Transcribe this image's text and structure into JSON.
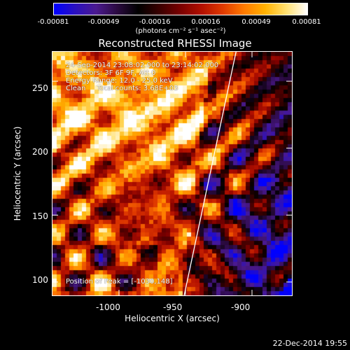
{
  "colorbar": {
    "tick_labels": [
      "-0.00081",
      "-0.00049",
      "-0.00016",
      "0.00016",
      "0.00049",
      "0.00081"
    ],
    "units": "(photons cm⁻² s⁻¹ asec⁻²)",
    "colormap": [
      "#0000ff",
      "#2a10c0",
      "#4b1a90",
      "#2b0a40",
      "#000000",
      "#3a0000",
      "#7a0000",
      "#b31000",
      "#e03a00",
      "#ff7a00",
      "#ffb100",
      "#ffe070",
      "#ffffff"
    ]
  },
  "plot": {
    "title": "Reconstructed RHESSI Image",
    "info_lines": [
      "24-Sep-2014 23:08:02.000 to 23:14:02.000",
      "Detectors: 3F 6F 9F, Att 0",
      "Energy Range: 12.0 - 25.0 keV",
      "Clean     Total counts: 3.68E+03"
    ],
    "peak_label": "Position of Peak = [-1030,148]",
    "xlabel": "Heliocentric X (arcsec)",
    "ylabel": "Heliocentric Y (arcsec)",
    "xticks": [
      "-1000",
      "-950",
      "-900"
    ],
    "yticks": [
      "100",
      "150",
      "200",
      "250"
    ],
    "limb_line_color": "#ffffff"
  },
  "chart_data": {
    "type": "heatmap",
    "title": "Reconstructed RHESSI Image",
    "xlabel": "Heliocentric X (arcsec)",
    "ylabel": "Heliocentric Y (arcsec)",
    "xlim": [
      -1050,
      -870
    ],
    "ylim": [
      90,
      272
    ],
    "xticks": [
      -1000,
      -950,
      -900
    ],
    "yticks": [
      100,
      150,
      200,
      250
    ],
    "color_range": [
      -0.00081,
      0.00081
    ],
    "peak_position": [
      -1030,
      148
    ],
    "limb_line": {
      "x": [
        -951,
        -912
      ],
      "y": [
        90,
        272
      ]
    }
  },
  "footer": {
    "timestamp": "22-Dec-2014 19:55"
  }
}
